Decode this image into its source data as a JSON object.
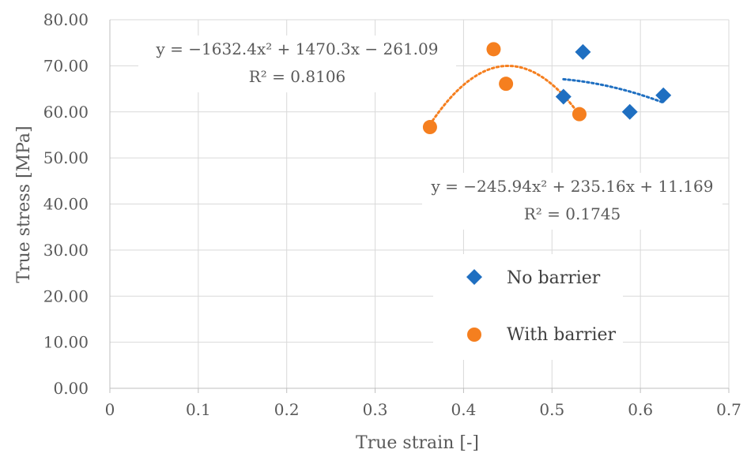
{
  "chart_data": {
    "type": "scatter",
    "xlabel": "True strain [-]",
    "ylabel": "True stress [MPa]",
    "xlim": [
      0,
      0.7
    ],
    "ylim": [
      0,
      80
    ],
    "x_ticks": [
      "0",
      "0.1",
      "0.2",
      "0.3",
      "0.4",
      "0.5",
      "0.6",
      "0.7"
    ],
    "y_ticks": [
      "0.00",
      "10.00",
      "20.00",
      "30.00",
      "40.00",
      "50.00",
      "60.00",
      "70.00",
      "80.00"
    ],
    "grid": true,
    "legend_position": "lower-right",
    "series": [
      {
        "name": "No barrier",
        "marker": "diamond",
        "color": "#1f6fc1",
        "points": [
          [
            0.513,
            63.3
          ],
          [
            0.535,
            73.0
          ],
          [
            0.588,
            60.0
          ],
          [
            0.626,
            63.6
          ]
        ],
        "trendline": {
          "type": "polynomial-2",
          "coefficients": [
            -245.94,
            235.16,
            11.169
          ],
          "range": [
            0.513,
            0.626
          ],
          "equation": "y = −245.94x² + 235.16x + 11.169",
          "r2": "R² = 0.1745"
        }
      },
      {
        "name": "With barrier",
        "marker": "circle",
        "color": "#f57f1f",
        "points": [
          [
            0.362,
            56.7
          ],
          [
            0.434,
            73.6
          ],
          [
            0.448,
            66.1
          ],
          [
            0.531,
            59.5
          ]
        ],
        "trendline": {
          "type": "polynomial-2",
          "coefficients": [
            -1632.4,
            1470.3,
            -261.09
          ],
          "range": [
            0.362,
            0.531
          ],
          "equation": "y = −1632.4x² + 1470.3x − 261.09",
          "r2": "R² = 0.8106"
        }
      }
    ]
  }
}
